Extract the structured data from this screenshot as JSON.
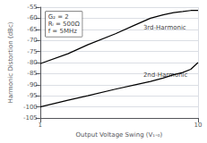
{
  "chart_data": {
    "type": "line",
    "xlabel": "Output Voltage Swing (V₁-₀)",
    "ylabel": "Harmonic Distortion (dBc)",
    "log": "x",
    "grid": true,
    "xlim": [
      1,
      10
    ],
    "xticks": [
      1,
      10
    ],
    "ylim": [
      -105,
      -55
    ],
    "yticks": [
      -105,
      -100,
      -95,
      -90,
      -85,
      -80,
      -75,
      -70,
      -65,
      -60,
      -55
    ],
    "x": [
      1,
      1.5,
      2,
      3,
      4,
      5,
      6,
      7,
      8,
      9,
      10
    ],
    "series": [
      {
        "color": "#000000",
        "values": [
          -80.5,
          -76,
          -72,
          -67,
          -63,
          -60,
          -58.5,
          -57.5,
          -57,
          -56.5,
          -56.5
        ]
      },
      {
        "color": "#000000",
        "values": [
          -100,
          -97,
          -95,
          -92,
          -90,
          -88.5,
          -87,
          -85.5,
          -84.5,
          -83,
          -80
        ]
      }
    ],
    "line_labels": [
      {
        "text": "3rd-Harmonic",
        "x": 4.5,
        "y": -66
      },
      {
        "text": "2nd-Harmonic",
        "x": 4.5,
        "y": -87.5
      }
    ],
    "annotation": {
      "lines": [
        "G₂ = 2",
        "Rₗ = 500Ω",
        "f = 5MHz"
      ],
      "x": 1.08,
      "y": -57
    }
  }
}
